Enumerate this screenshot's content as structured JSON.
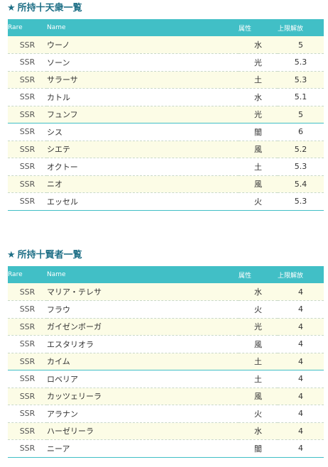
{
  "tenshu": {
    "title": "所持十天衆一覧",
    "star": "★",
    "headers": {
      "rare": "Rare",
      "name": "Name",
      "attr": "属性",
      "limit": "上限解放"
    },
    "rows": [
      {
        "rare": "SSR",
        "name": "ウーノ",
        "attr": "水",
        "limit": "5"
      },
      {
        "rare": "SSR",
        "name": "ソーン",
        "attr": "光",
        "limit": "5.3"
      },
      {
        "rare": "SSR",
        "name": "サラーサ",
        "attr": "土",
        "limit": "5.3"
      },
      {
        "rare": "SSR",
        "name": "カトル",
        "attr": "水",
        "limit": "5.1"
      },
      {
        "rare": "SSR",
        "name": "フュンフ",
        "attr": "光",
        "limit": "5"
      },
      {
        "rare": "SSR",
        "name": "シス",
        "attr": "闇",
        "limit": "6"
      },
      {
        "rare": "SSR",
        "name": "シエテ",
        "attr": "風",
        "limit": "5.2"
      },
      {
        "rare": "SSR",
        "name": "オクトー",
        "attr": "土",
        "limit": "5.3"
      },
      {
        "rare": "SSR",
        "name": "ニオ",
        "attr": "風",
        "limit": "5.4"
      },
      {
        "rare": "SSR",
        "name": "エッセル",
        "attr": "火",
        "limit": "5.3"
      }
    ]
  },
  "kenja": {
    "title": "所持十賢者一覧",
    "star": "★",
    "headers": {
      "rare": "Rare",
      "name": "Name",
      "attr": "属性",
      "limit": "上限解放"
    },
    "rows": [
      {
        "rare": "SSR",
        "name": "マリア・テレサ",
        "attr": "水",
        "limit": "4"
      },
      {
        "rare": "SSR",
        "name": "フラウ",
        "attr": "火",
        "limit": "4"
      },
      {
        "rare": "SSR",
        "name": "ガイゼンボーガ",
        "attr": "光",
        "limit": "4"
      },
      {
        "rare": "SSR",
        "name": "エスタリオラ",
        "attr": "風",
        "limit": "4"
      },
      {
        "rare": "SSR",
        "name": "カイム",
        "attr": "土",
        "limit": "4"
      },
      {
        "rare": "SSR",
        "name": "ロベリア",
        "attr": "土",
        "limit": "4"
      },
      {
        "rare": "SSR",
        "name": "カッツェリーラ",
        "attr": "風",
        "limit": "4"
      },
      {
        "rare": "SSR",
        "name": "アラナン",
        "attr": "火",
        "limit": "4"
      },
      {
        "rare": "SSR",
        "name": "ハーゼリーラ",
        "attr": "水",
        "limit": "4"
      },
      {
        "rare": "SSR",
        "name": "ニーア",
        "attr": "闇",
        "limit": "4"
      }
    ]
  }
}
